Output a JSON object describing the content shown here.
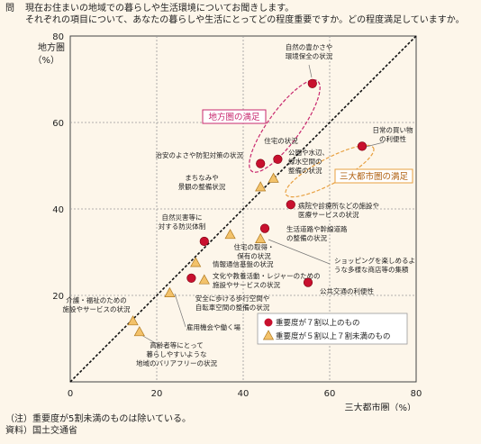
{
  "header": {
    "q_mark": "問",
    "question_line1": "現在お住まいの地域での暮らしや生活環境についてお聞きします。",
    "question_line2": "それぞれの項目について、あなたの暮らしや生活にとってどの程度重要ですか。どの程度満足していますか。"
  },
  "footer": {
    "note": "（注）重要度が5割未満のものは除いている。",
    "source": "資料）国土交通省"
  },
  "colors": {
    "background": "#fdf6ea",
    "high_importance": "#c8102e",
    "mid_importance": "#f3c26a",
    "regional_callout": "#c8286e",
    "metro_callout": "#e8a040",
    "grid": "#999999"
  },
  "chart_data": {
    "type": "scatter",
    "xlabel": "三大都市圏（%）",
    "ylabel": "地方圏（%）",
    "xlim": [
      0,
      80
    ],
    "ylim": [
      0,
      80
    ],
    "xticks": [
      0,
      20,
      40,
      60,
      80
    ],
    "yticks": [
      20,
      40,
      60,
      80
    ],
    "grid": true,
    "diagonal": "y = x",
    "series": [
      {
        "name": "重要度が7割以上のもの",
        "marker": "circle",
        "color": "#c8102e",
        "points": [
          {
            "x": 56,
            "y": 69,
            "label": "自然の豊かさや環境保全の状況"
          },
          {
            "x": 48,
            "y": 51.5,
            "label": "住宅の状況"
          },
          {
            "x": 44,
            "y": 50.5,
            "label": "治安のよさや防犯対策の状況"
          },
          {
            "x": 67.5,
            "y": 54.5,
            "label": "日常の買い物の利便性"
          },
          {
            "x": 51,
            "y": 41,
            "label": "病院や診療所などの施設や医療サービスの状況"
          },
          {
            "x": 45,
            "y": 35.5,
            "label": "生活道路や幹線道路の整備の状況"
          },
          {
            "x": 31,
            "y": 32.5,
            "label": "自然災害等に対する防災体制"
          },
          {
            "x": 55,
            "y": 23,
            "label": "公共交通の利便性"
          },
          {
            "x": 28,
            "y": 24,
            "label": "安全に歩ける歩行空間や自転車空間の整備の状況"
          }
        ]
      },
      {
        "name": "重要度が5割以上7割未満のもの",
        "marker": "triangle",
        "color": "#f3c26a",
        "points": [
          {
            "x": 47,
            "y": 47,
            "label": "公園や水辺、緑水空間の整備の状況"
          },
          {
            "x": 44,
            "y": 45,
            "label": "まちなみや景観の整備状況"
          },
          {
            "x": 37,
            "y": 34,
            "label": "住宅の取得・保有の状況"
          },
          {
            "x": 44,
            "y": 33,
            "label": "ショッピングを楽しめるような多様な商店等の集積"
          },
          {
            "x": 29,
            "y": 27.5,
            "label": "情報通信基盤の状況"
          },
          {
            "x": 31,
            "y": 23.5,
            "label": "文化や教養活動・レジャーのための施設やサービスの状況"
          },
          {
            "x": 23,
            "y": 20.5,
            "label": "雇用機会や働く場"
          },
          {
            "x": 14.5,
            "y": 14,
            "label": "介護・福祉のための施設やサービスの状況"
          },
          {
            "x": 16,
            "y": 11.5,
            "label": "高齢者等にとって暮らしやすいような地域のバリアフリーの状況"
          }
        ]
      }
    ],
    "annotations": [
      {
        "text": "地方圏の満足",
        "color": "#c8286e"
      },
      {
        "text": "三大都市圏の満足",
        "color": "#e8a040"
      }
    ],
    "legend": {
      "placement": "bottom-right",
      "items": [
        "重要度が７割以上のもの",
        "重要度が５割以上７割未満のもの"
      ]
    }
  }
}
